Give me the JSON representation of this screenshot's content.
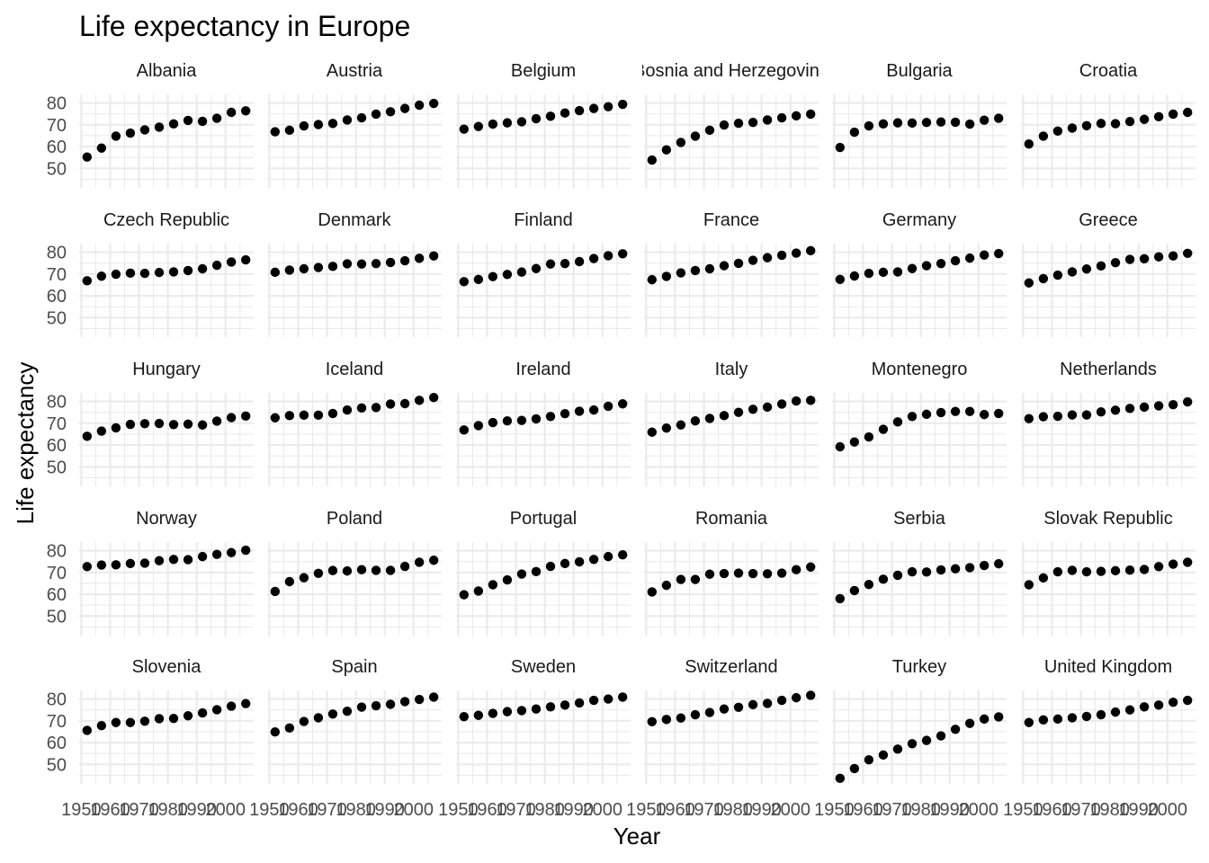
{
  "chart_data": {
    "type": "scatter",
    "title": "Life expectancy in Europe",
    "xlabel": "Year",
    "ylabel": "Life expectancy",
    "xlim": [
      1952,
      2007
    ],
    "ylim": [
      43,
      82
    ],
    "x_ticks": [
      1950,
      1960,
      1970,
      1980,
      1990,
      2000
    ],
    "x_tick_labels": [
      "1950",
      "1960",
      "1970",
      "1980",
      "1990",
      "2000"
    ],
    "y_ticks": [
      50,
      60,
      70,
      80
    ],
    "y_tick_labels": [
      "50",
      "60",
      "70",
      "80"
    ],
    "grid": true,
    "years": [
      1952,
      1957,
      1962,
      1967,
      1972,
      1977,
      1982,
      1987,
      1992,
      1997,
      2002,
      2007
    ],
    "facets": [
      {
        "name": "Albania",
        "values": [
          55.2,
          59.3,
          64.8,
          66.2,
          67.7,
          68.9,
          70.4,
          72.0,
          71.6,
          73.0,
          75.7,
          76.4
        ]
      },
      {
        "name": "Austria",
        "values": [
          66.8,
          67.5,
          69.5,
          70.1,
          70.6,
          72.2,
          73.2,
          74.9,
          76.0,
          77.5,
          79.0,
          79.8
        ]
      },
      {
        "name": "Belgium",
        "values": [
          68.0,
          69.2,
          70.3,
          70.9,
          71.4,
          72.8,
          73.9,
          75.4,
          76.5,
          77.5,
          78.3,
          79.4
        ]
      },
      {
        "name": "Bosnia and Herzegovina",
        "values": [
          53.8,
          58.5,
          61.9,
          64.8,
          67.5,
          69.9,
          70.7,
          71.1,
          72.2,
          73.2,
          74.1,
          74.9
        ]
      },
      {
        "name": "Bulgaria",
        "values": [
          59.6,
          66.6,
          69.5,
          70.4,
          70.9,
          70.8,
          71.1,
          71.3,
          71.2,
          70.3,
          72.1,
          73.0
        ]
      },
      {
        "name": "Croatia",
        "values": [
          61.2,
          64.8,
          67.1,
          68.5,
          69.6,
          70.6,
          70.5,
          71.5,
          72.5,
          73.7,
          74.9,
          75.7
        ]
      },
      {
        "name": "Czech Republic",
        "values": [
          66.9,
          69.0,
          69.9,
          70.4,
          70.3,
          70.7,
          71.0,
          71.6,
          72.4,
          74.0,
          75.5,
          76.5
        ]
      },
      {
        "name": "Denmark",
        "values": [
          70.8,
          71.8,
          72.4,
          73.0,
          73.5,
          74.7,
          74.6,
          74.8,
          75.3,
          76.1,
          77.2,
          78.3
        ]
      },
      {
        "name": "Finland",
        "values": [
          66.5,
          67.5,
          68.8,
          69.8,
          70.9,
          72.5,
          74.6,
          74.8,
          75.7,
          77.1,
          78.4,
          79.3
        ]
      },
      {
        "name": "France",
        "values": [
          67.4,
          68.9,
          70.5,
          71.6,
          72.4,
          73.8,
          74.9,
          76.3,
          77.5,
          78.6,
          79.6,
          80.7
        ]
      },
      {
        "name": "Germany",
        "values": [
          67.5,
          69.1,
          70.3,
          70.8,
          71.0,
          72.5,
          73.8,
          74.8,
          76.1,
          77.3,
          78.7,
          79.4
        ]
      },
      {
        "name": "Greece",
        "values": [
          65.9,
          67.9,
          69.5,
          71.0,
          72.3,
          73.7,
          75.2,
          76.7,
          77.0,
          77.9,
          78.3,
          79.5
        ]
      },
      {
        "name": "Hungary",
        "values": [
          64.0,
          66.4,
          67.9,
          69.5,
          69.8,
          69.9,
          69.4,
          69.6,
          69.2,
          71.0,
          72.6,
          73.3
        ]
      },
      {
        "name": "Iceland",
        "values": [
          72.5,
          73.5,
          73.7,
          73.7,
          74.5,
          76.1,
          77.0,
          77.2,
          78.8,
          79.0,
          80.5,
          81.8
        ]
      },
      {
        "name": "Ireland",
        "values": [
          66.9,
          68.9,
          70.3,
          71.1,
          71.3,
          72.0,
          73.1,
          74.4,
          75.5,
          76.1,
          77.8,
          78.9
        ]
      },
      {
        "name": "Italy",
        "values": [
          65.9,
          67.8,
          69.2,
          71.1,
          72.2,
          73.5,
          75.0,
          76.4,
          77.4,
          78.8,
          80.2,
          80.5
        ]
      },
      {
        "name": "Montenegro",
        "values": [
          59.2,
          61.4,
          63.7,
          67.2,
          70.6,
          73.1,
          74.1,
          74.9,
          75.4,
          75.4,
          74.0,
          74.5
        ]
      },
      {
        "name": "Netherlands",
        "values": [
          72.1,
          73.0,
          73.2,
          73.8,
          73.8,
          75.2,
          76.0,
          76.8,
          77.4,
          78.0,
          78.5,
          79.8
        ]
      },
      {
        "name": "Norway",
        "values": [
          72.7,
          73.4,
          73.5,
          74.1,
          74.3,
          75.4,
          76.0,
          75.9,
          77.3,
          78.3,
          79.1,
          80.2
        ]
      },
      {
        "name": "Poland",
        "values": [
          61.3,
          65.8,
          67.6,
          69.6,
          70.9,
          70.7,
          71.3,
          71.0,
          71.0,
          72.8,
          74.7,
          75.6
        ]
      },
      {
        "name": "Portugal",
        "values": [
          59.8,
          61.5,
          64.4,
          66.6,
          69.3,
          70.4,
          72.8,
          74.1,
          74.9,
          76.0,
          77.3,
          78.1
        ]
      },
      {
        "name": "Romania",
        "values": [
          61.1,
          64.1,
          66.8,
          66.8,
          69.2,
          69.5,
          69.7,
          69.5,
          69.4,
          69.7,
          71.3,
          72.5
        ]
      },
      {
        "name": "Serbia",
        "values": [
          58.0,
          61.7,
          64.5,
          66.9,
          68.7,
          70.3,
          70.2,
          71.2,
          71.7,
          72.2,
          73.2,
          74.0
        ]
      },
      {
        "name": "Slovak Republic",
        "values": [
          64.4,
          67.5,
          70.3,
          71.0,
          70.3,
          70.5,
          70.8,
          71.1,
          71.4,
          72.7,
          73.8,
          74.7
        ]
      },
      {
        "name": "Slovenia",
        "values": [
          65.6,
          67.8,
          69.2,
          69.2,
          69.8,
          71.0,
          71.1,
          72.3,
          73.6,
          75.1,
          76.7,
          77.9
        ]
      },
      {
        "name": "Spain",
        "values": [
          64.9,
          66.7,
          69.7,
          71.4,
          73.1,
          74.4,
          76.3,
          76.9,
          77.6,
          78.8,
          79.8,
          80.9
        ]
      },
      {
        "name": "Sweden",
        "values": [
          71.9,
          72.5,
          73.4,
          74.2,
          74.7,
          75.4,
          76.4,
          77.2,
          78.2,
          79.4,
          80.0,
          80.9
        ]
      },
      {
        "name": "Switzerland",
        "values": [
          69.6,
          70.6,
          71.3,
          72.8,
          73.8,
          75.4,
          76.2,
          77.4,
          78.0,
          79.4,
          80.6,
          81.7
        ]
      },
      {
        "name": "Turkey",
        "values": [
          43.6,
          48.1,
          52.1,
          54.3,
          57.0,
          59.5,
          61.0,
          63.1,
          66.1,
          68.8,
          70.8,
          71.8
        ]
      },
      {
        "name": "United Kingdom",
        "values": [
          69.2,
          70.4,
          70.8,
          71.4,
          72.0,
          72.8,
          74.0,
          75.0,
          76.4,
          77.2,
          78.5,
          79.4
        ]
      }
    ]
  }
}
